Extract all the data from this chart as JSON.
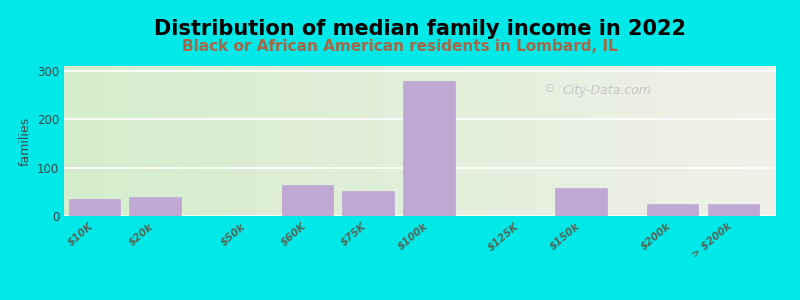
{
  "title": "Distribution of median family income in 2022",
  "subtitle": "Black or African American residents in Lombard, IL",
  "ylabel": "families",
  "background_outer": "#00e8e8",
  "background_inner_left": "#d4edcc",
  "background_inner_right": "#f0f0e8",
  "bar_color": "#c0a8d4",
  "bar_edge_color": "#c0a8d4",
  "categories": [
    "$10K",
    "$20k",
    "$50k",
    "$60K",
    "$75K",
    "$100k",
    "$125K",
    "$150k",
    "$200k",
    "> $200k"
  ],
  "values": [
    35,
    40,
    0,
    65,
    52,
    278,
    0,
    58,
    25,
    25
  ],
  "bar_positions": [
    0,
    1,
    2.5,
    3.5,
    4.5,
    5.5,
    7,
    8,
    9.5,
    10.5
  ],
  "yticks": [
    0,
    100,
    200,
    300
  ],
  "ylim": [
    0,
    310
  ],
  "xlim": [
    -0.5,
    11.2
  ],
  "title_fontsize": 15,
  "subtitle_fontsize": 11,
  "watermark": "City-Data.com",
  "bar_width": 0.85
}
